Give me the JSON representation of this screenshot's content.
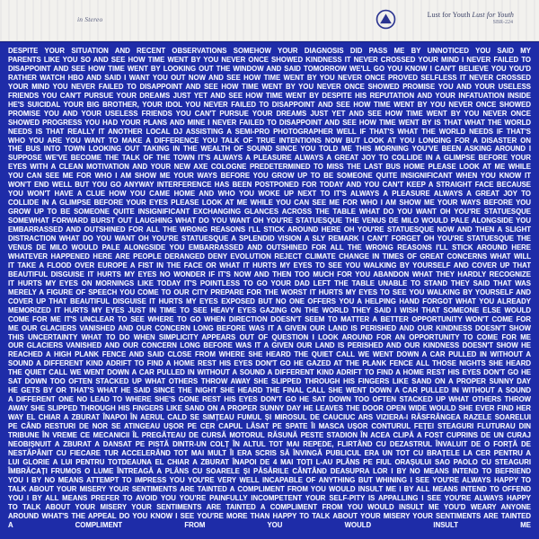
{
  "header": {
    "stereo_label": "in Stereo",
    "artist": "Lust for Youth",
    "album_title": "Lust for Youth",
    "catalog_number": "SBR-224",
    "logo_icon": "circle-triangle-record-label-logo"
  },
  "colors": {
    "cover_blue": "#1e2ca8",
    "cover_blue_edge": "#16207e",
    "text_white": "#f2f4ff",
    "header_bg": "#f2f1ee",
    "header_text": "#3e4468",
    "logo_navy": "#2a3390"
  },
  "body": {
    "lines": [
      "DESPITE YOUR SITUATION AND RECENT OBSERVATIONS SOMEHOW YOUR DIAGNOSIS DID PASS ME BY UNNOTICED YOU SAID MY",
      "PARENTS LIKE YOU SO AND SEE HOW TIME WENT BY YOU NEVER ONCE SHOWED KINDNESS IT NEVER CROSSED YOUR MIND I NEVER FAILED TO",
      "DISAPPOINT AND SEE HOW TIME WENT BY LOOKING OUT THE WINDOW AND SAID TOMORROW WE'LL GO YOU KNOW I CAN'T BELIEVE YOU YOU'D",
      "RATHER WATCH HBO AND SAID I WANT YOU OUT NOW AND SEE HOW TIME WENT BY YOU NEVER ONCE PROVED SELFLESS IT NEVER CROSSED",
      "YOUR MIND YOU NEVER FAILED TO DISAPPOINT AND SEE HOW TIME WENT BY YOU NEVER ONCE SHOWED PROMISE YOU AND YOUR USELESS",
      "FRIENDS YOU CAN'T PURSUE YOUR DREAMS JUST YET AND SEE HOW TIME WENT BY DESPITE HIS REPUTATION AND YOUR INFATUATION INSIDE",
      "HE'S SUICIDAL YOUR BIG BROTHER, YOUR IDOL YOU NEVER FAILED TO DISAPPOINT AND SEE HOW TIME WENT BY YOU NEVER ONCE SHOWED",
      "PROMISE YOU AND YOUR USELESS FRIENDS YOU CAN'T PURSUE YOUR DREAMS JUST YET AND SEE HOW TIME WENT BY YOU NEVER ONCE",
      "SHOWED PROGRESS YOU HAD YOUR PLANS AND MINE I NEVER FAILED TO DISAPPOINT AND SEE HOW TIME WENT BY IS THAT WHAT THE WORLD",
      "NEEDS IS THAT REALLY IT ANOTHER LOCAL DJ ASSISTING A SEMI-PRO PHOTOGRAPHER WELL IF THAT'S WHAT THE WORLD NEEDS IF THAT'S",
      "WHO YOU ARE YOU WANT TO MAKE A DIFFERENCE YOU TALK OF TRUE INTENTIONS NOW BUT LOOK AT YOU LONGING FOR A DISASTER ON",
      "THE BUS INTO TOWN LOOKING OUT TAKING IN THE WEALTH OF SOUND SINCE YOU TOLD ME THIS MORNING YOU'VE BEEN ASKING AROUND I",
      "SUPPOSE WE'VE BECOME THE TALK OF THE TOWN IT'S ALWAYS A PLEASURE ALWAYS A GREAT JOY TO COLLIDE IN A GLIMPSE BEFORE YOUR",
      "EYES WITH A CLEAN MOTIVATION AND YOUR NEW AXE COLOGNE PREDETERMINED TO MISS THE LAST BUS HOME PLEASE LOOK AT ME WHILE",
      "YOU CAN SEE ME FOR WHO I AM SHOW ME YOUR WAYS BEFORE YOU GROW UP TO BE SOMEONE QUITE INSIGNIFICANT WHEN YOU KNOW IT",
      "WON'T END WELL BUT YOU GO ANYWAY INTERFERENCE HAS BEEN POSTPONED FOR TODAY AND YOU CAN'T KEEP A STRAIGHT FACE BECAUSE",
      "YOU WON'T HAVE A CLUE HOW YOU CAME HOME AND WHO YOU WOKE UP NEXT TO IT'S ALWAYS A PLEASURE ALWAYS A GREAT JOY TO",
      "COLLIDE IN A GLIMPSE BEFORE YOUR EYES PLEASE LOOK AT ME WHILE YOU CAN SEE ME FOR WHO I AM SHOW ME YOUR WAYS BEFORE YOU",
      "GROW UP TO BE SOMEONE QUITE INSIGNIFICANT EXCHANGING GLANCES ACROSS THE TABLE WHAT DO YOU WANT OH YOU'RE STATUESQUE",
      "SOMEWHAT FORWARD BURST OUT LAUGHING WHAT DO YOU WANT OH YOU'RE STATUESQUE THE VENUS DE MILO WOULD PALE ALONGSIDE YOU",
      "EMBARRASSED AND OUTSHINED FOR ALL THE WRONG REASONS I'LL STICK AROUND HERE OH YOU'RE STATUESQUE NOW AND THEN A SLIGHT",
      "DISTRACTION WHAT DO YOU WANT OH YOU'RE STATUESQUE A SPLENDID VISION A SLY REMARK I CAN'T FORGET OH YOU'RE STATUESQUE THE",
      "VENUS DE MILO WOULD PALE ALONGSIDE YOU EMBARRASSED AND OUTSHINED FOR ALL THE WRONG REASONS I'LL STICK AROUND HERE",
      "WHATEVER HAPPENED HERE ARE PEOPLE DERANGED DENY EVOLUTION REJECT CLIMATE CHANGE IN TIMES OF GREAT CONCERNS WHAT WILL",
      "IT TAKE A FLOOD OVER EUROPE A FIST IN THE FACE OR WHAT IT HURTS MY EYES TO SEE YOU WALKING BY YOURSELF AND COVER UP THAT",
      "BEAUTIFUL DISGUISE IT HURTS MY EYES NO WONDER IF IT'S NOW AND THEN TOO MUCH FOR YOU ABANDON WHAT THEY HARDLY RECOGNIZE",
      "IT HURTS MY EYES ON MORNINGS LIKE TODAY IT'S POINTLESS TO GO YOUR DAD LEFT THE TABLE UNABLE TO STAND THEY SAID THAT WAS",
      "MERELY A FIGURE OF SPEECH YOU COME TO OUR CITY PREPARE FOR THE WORST IT HURTS MY EYES TO SEE YOU WALKING BY YOURSELF AND",
      "COVER UP THAT BEAUTIFUL DISGUISE IT HURTS MY EYES EXPOSED BUT NO ONE OFFERS YOU A HELPING HAND FORGOT WHAT YOU ALREADY",
      "MEMORIZED IT HURTS MY EYES JUST IN TIME TO SEE HEAVY EYES GAZING ON THE WORLD THEY SAID I WISH THAT SOMEONE ELSE WOULD",
      "COME FOR ME IT'S UNCLEAR TO SEE WHERE TO GO WHEN DIRECTION DOESN'T SEEM TO MATTER A BETTER OPPORTUNITY WON'T COME FOR",
      "ME OUR GLACIERS VANISHED AND OUR CONCERN LONG BEFORE WAS IT A GIVEN OUR LAND IS PERISHED AND OUR KINDNESS DOESN'T SHOW",
      "THIS UNCERTAINTY WHAT TO DO WHEN SIMPLICITY APPEARS OUT OF QUESTION I LOOK AROUND FOR AN OPPORTUNITY TO COME FOR ME",
      "OUR GLACIERS VANISHED AND OUR CONCERN LONG BEFORE WAS IT A GIVEN OUR LAND IS PERISHED AND OUR KINDNESS DOESN'T SHOW HE",
      "REACHED A HIGH PLANK FENCE AND SAID CLOSE FROM WHERE SHE HEARD THE QUIET CALL WE WENT DOWN A CAR PULLED IN WITHOUT A",
      "SOUND A DIFFERENT KIND ADRIFT TO FIND A HOME REST HIS EYES DON'T GO HE GAZED AT THE PLANK FENCE ALL THOSE NIGHTS SHE HEARD",
      "THE QUIET CALL WE WENT DOWN A CAR PULLED IN WITHOUT A SOUND A DIFFERENT KIND ADRIFT TO FIND A HOME REST HIS EYES DON'T GO HE",
      "SAT DOWN TOO OFTEN STACKED UP WHAT OTHERS THROW AWAY SHE SLIPPED THROUGH HIS FINGERS LIKE SAND ON A PROPER SUNNY DAY",
      "HE GETS BY OR THAT'S WHAT HE SAID SINCE THE NIGHT SHE HEARD THE FINAL CALL SHE WENT DOWN A CAR PULLED IN WITHOUT A SOUND",
      "A DIFFERENT ONE NO LEAD TO WHERE SHE'S GONE REST HIS EYES DON'T GO HE SAT DOWN TOO OFTEN STACKED UP WHAT OTHERS THROW",
      "AWAY SHE SLIPPED THROUGH HIS FINGERS LIKE SAND ON A PROPER SUNNY DAY HE LEAVES THE DOOR OPEN WIDE WOULD SHE EVER FIND HER",
      "WAY EL CHIAR A ZBURAT ÎNAPOI ÎN AERUL CALD SE SIMȚEAU FUMUL ȘI MIROSUL DE CAUCIUC ARS VIZIERA-I RĂSFRÂNGEA RAZELE SOARELUI",
      "PE CÂND RESTURI DE NOR SE ATINGEAU UȘOR PE CER CAPUL LĂSAT PE SPATE ÎI MASCA UȘOR CONTURUL FEȚEI STEAGURI FLUTURAU DIN",
      "TRIBUNE ÎN VREME CE MECANICII ÎL PREGĂTEAU DE CURSĂ MOTORUL RĂSUNĂ PESTE STADION ÎN ACEA CLIPĂ A FOST CUPRINS DE UN CURAJ",
      "NEOBIȘNUIT A ZBURAT A DANSAT PE PISTĂ DINTR-UN COLȚ ÎN ALTUL TOT MAI REPEDE, FLIRTÂND CU DEZASTRUL ÎNVALUIT DE O FORȚĂ DE",
      "NESTĂPÂNIT CU FIECARE TUR ACCELERÂND TOT MAI MULT ÎI ERA SCRIS SĂ ÎNVINGĂ PUBLICUL ERA UN TOT CU BRAȚELE LA CER PENTRU A",
      "LUI GLORIE A LUI PENTRU TOTDEAUNA EL CHIAR A ZBURAT ÎNAPOI DE 4 MAI TOȚI L-AU PLÂNS PE FIUL ORAȘULUI SAO PAOLO CU STEAGURI",
      "ÎMBRĂCAȚI FRUMOS O LUME ÎNTREAGĂ A PLÂNS CU SOARELE ȘI PĂSĂRILE CÂNTÂND DEASUPRA LOR I BY NO MEANS INTEND TO BEFRIEND",
      "YOU I BY NO MEANS ATTEMPT TO IMPRESS YOU YOU'RE VERY WELL INCAPABLE OF ANYTHING BUT WHINING I SEE YOU'RE ALWAYS HAPPY TO",
      "TALK ABOUT YOUR MISERY YOUR SENTIMENTS ARE TAINTED A COMPLIMENT FROM YOU WOULD INSULT ME I BY ALL MEANS INTEND TO OFFEND",
      "YOU I BY ALL MEANS PREFER TO AVOID YOU YOU'RE PAINFULLY INCOMPETENT YOUR SELF-PITY IS APPALLING I SEE YOU'RE ALWAYS HAPPY",
      "TO TALK ABOUT YOUR MISERY YOUR SENTIMENTS ARE TAINTED A COMPLIMENT FROM YOU WOULD INSULT ME YOU'D WEARY ANYONE",
      "AROUND WHAT'S THE APPEAL DO YOU KNOW I SEE YOU'RE MORE THAN HAPPY TO TALK ABOUT YOUR MISERY YOUR SENTIMENTS ARE TAINTED",
      "A COMPLIMENT FROM YOU WOULD INSULT ME"
    ]
  }
}
